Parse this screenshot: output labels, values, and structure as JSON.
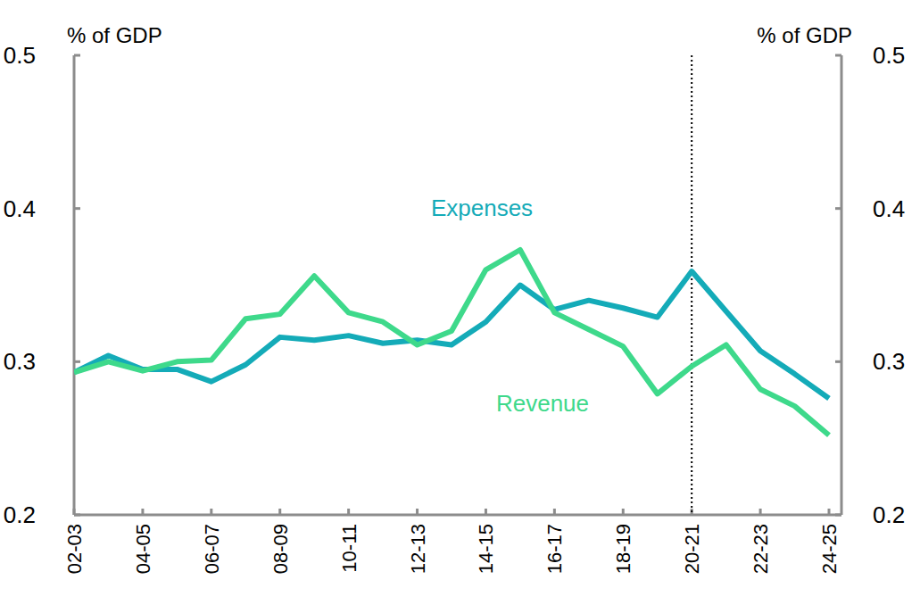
{
  "chart_data": {
    "type": "line",
    "y_label": "% of GDP",
    "y2_label": "% of GDP",
    "categories": [
      "02-03",
      null,
      "04-05",
      null,
      "06-07",
      null,
      "08-09",
      null,
      "10-11",
      null,
      "12-13",
      null,
      "14-15",
      null,
      "16-17",
      null,
      "18-19",
      null,
      "20-21",
      null,
      "22-23",
      null,
      "24-25"
    ],
    "series": [
      {
        "name": "Expenses",
        "color": "#14abb8",
        "line_style": "solid",
        "values": [
          0.293,
          0.304,
          0.295,
          0.295,
          0.287,
          0.298,
          0.316,
          0.314,
          0.317,
          0.312,
          0.314,
          0.311,
          0.326,
          0.35,
          0.334,
          0.34,
          0.335,
          0.329,
          0.359,
          0.333,
          0.307,
          0.292,
          0.276
        ]
      },
      {
        "name": "Revenue",
        "color": "#3ed98b",
        "line_style": "solid",
        "values": [
          0.293,
          0.3,
          0.294,
          0.3,
          0.301,
          0.328,
          0.331,
          0.356,
          0.332,
          0.326,
          0.311,
          0.32,
          0.36,
          0.373,
          0.332,
          0.321,
          0.31,
          0.279,
          0.297,
          0.311,
          0.282,
          0.271,
          0.252
        ]
      }
    ],
    "ylim": [
      0.2,
      0.5
    ],
    "yticks": [
      0.2,
      0.3,
      0.4,
      0.5
    ],
    "y2lim": [
      0.2,
      0.5
    ],
    "y2ticks": [
      0.2,
      0.3,
      0.4,
      0.5
    ],
    "vline": "20-21",
    "grid": false
  }
}
